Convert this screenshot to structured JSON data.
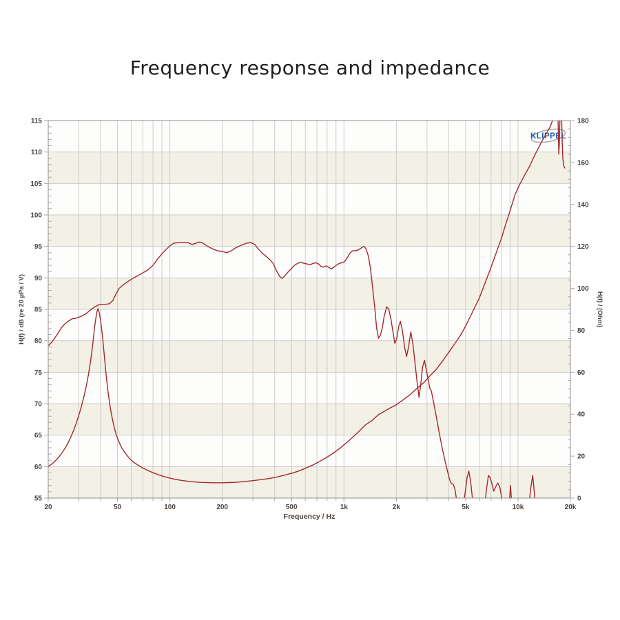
{
  "title": "Frequency response and impedance",
  "logo": {
    "text": "KLIPPEL",
    "color": "#1d5fae",
    "arc_color": "#a7abb2"
  },
  "colors": {
    "curve": "#a5282b",
    "grid": "#cccccc",
    "minor_tick": "#aaaaaa",
    "frame": "#8f8f8f",
    "band_cream": "#f3f0e6",
    "band_white": "#fdfdfc",
    "axis_text": "#4a423d",
    "title_text": "#1e1e1e"
  },
  "chart_data": {
    "type": "line",
    "title": "Frequency response and impedance",
    "xlabel": "Frequency / Hz",
    "x_scale": "log",
    "x_range": [
      20,
      20000
    ],
    "left_axis": {
      "label": "H(f) / dB (re 20 µPa / V)",
      "min": 55,
      "max": 115,
      "major_step": 5,
      "minor_step": 1
    },
    "right_axis": {
      "label": "H(f) / (Ohm)",
      "min": 0,
      "max": 180,
      "major_step": 20,
      "minor_step": 4
    },
    "x_ticks": [
      [
        20,
        "20"
      ],
      [
        50,
        "50"
      ],
      [
        100,
        "100"
      ],
      [
        200,
        "200"
      ],
      [
        500,
        "500"
      ],
      [
        1000,
        "1k"
      ],
      [
        2000,
        "2k"
      ],
      [
        5000,
        "5k"
      ],
      [
        10000,
        "10k"
      ],
      [
        20000,
        "20k"
      ]
    ],
    "grid": true,
    "series": [
      {
        "name": "frequency-response",
        "axis": "left",
        "unit": "dB",
        "points": [
          [
            20,
            79.2
          ],
          [
            21,
            79.8
          ],
          [
            22,
            80.6
          ],
          [
            23,
            81.4
          ],
          [
            24,
            82.2
          ],
          [
            25,
            82.7
          ],
          [
            26,
            83.1
          ],
          [
            27.5,
            83.5
          ],
          [
            29,
            83.6
          ],
          [
            31,
            83.9
          ],
          [
            33,
            84.3
          ],
          [
            35,
            84.9
          ],
          [
            37,
            85.4
          ],
          [
            39,
            85.7
          ],
          [
            41,
            85.8
          ],
          [
            43,
            85.8
          ],
          [
            45,
            85.9
          ],
          [
            47,
            86.4
          ],
          [
            49,
            87.4
          ],
          [
            51,
            88.3
          ],
          [
            54,
            88.9
          ],
          [
            58,
            89.5
          ],
          [
            62,
            90.0
          ],
          [
            66,
            90.4
          ],
          [
            70,
            90.8
          ],
          [
            75,
            91.3
          ],
          [
            80,
            92.0
          ],
          [
            85,
            93.0
          ],
          [
            90,
            93.8
          ],
          [
            95,
            94.5
          ],
          [
            100,
            95.1
          ],
          [
            105,
            95.5
          ],
          [
            112,
            95.6
          ],
          [
            120,
            95.6
          ],
          [
            127,
            95.6
          ],
          [
            134,
            95.3
          ],
          [
            141,
            95.5
          ],
          [
            148,
            95.7
          ],
          [
            155,
            95.5
          ],
          [
            165,
            95.0
          ],
          [
            176,
            94.6
          ],
          [
            188,
            94.3
          ],
          [
            200,
            94.2
          ],
          [
            212,
            94.0
          ],
          [
            225,
            94.3
          ],
          [
            240,
            94.8
          ],
          [
            258,
            95.2
          ],
          [
            275,
            95.5
          ],
          [
            292,
            95.6
          ],
          [
            308,
            95.3
          ],
          [
            322,
            94.6
          ],
          [
            340,
            93.9
          ],
          [
            358,
            93.4
          ],
          [
            375,
            92.9
          ],
          [
            392,
            92.3
          ],
          [
            410,
            91.1
          ],
          [
            428,
            90.2
          ],
          [
            443,
            89.9
          ],
          [
            460,
            90.4
          ],
          [
            480,
            91.0
          ],
          [
            500,
            91.5
          ],
          [
            520,
            92.0
          ],
          [
            542,
            92.3
          ],
          [
            565,
            92.5
          ],
          [
            590,
            92.3
          ],
          [
            615,
            92.2
          ],
          [
            640,
            92.1
          ],
          [
            665,
            92.3
          ],
          [
            690,
            92.4
          ],
          [
            715,
            92.2
          ],
          [
            740,
            91.8
          ],
          [
            765,
            91.7
          ],
          [
            790,
            91.9
          ],
          [
            815,
            91.7
          ],
          [
            845,
            91.4
          ],
          [
            875,
            91.7
          ],
          [
            905,
            92.0
          ],
          [
            940,
            92.3
          ],
          [
            975,
            92.4
          ],
          [
            1010,
            92.6
          ],
          [
            1045,
            93.2
          ],
          [
            1080,
            93.9
          ],
          [
            1120,
            94.3
          ],
          [
            1160,
            94.3
          ],
          [
            1200,
            94.4
          ],
          [
            1250,
            94.7
          ],
          [
            1300,
            95.0
          ],
          [
            1340,
            94.6
          ],
          [
            1380,
            93.5
          ],
          [
            1420,
            91.5
          ],
          [
            1460,
            88.5
          ],
          [
            1500,
            85.5
          ],
          [
            1540,
            82.0
          ],
          [
            1580,
            80.4
          ],
          [
            1620,
            80.9
          ],
          [
            1660,
            82.0
          ],
          [
            1700,
            83.8
          ],
          [
            1760,
            85.4
          ],
          [
            1810,
            85.0
          ],
          [
            1860,
            83.5
          ],
          [
            1910,
            81.5
          ],
          [
            1960,
            79.6
          ],
          [
            2010,
            80.3
          ],
          [
            2060,
            82.2
          ],
          [
            2110,
            83.1
          ],
          [
            2170,
            81.5
          ],
          [
            2230,
            79.0
          ],
          [
            2290,
            77.5
          ],
          [
            2350,
            79.0
          ],
          [
            2420,
            81.4
          ],
          [
            2490,
            79.5
          ],
          [
            2560,
            76.5
          ],
          [
            2630,
            73.5
          ],
          [
            2700,
            71.0
          ],
          [
            2760,
            73.0
          ],
          [
            2830,
            75.8
          ],
          [
            2900,
            76.9
          ],
          [
            2970,
            75.5
          ],
          [
            3040,
            74.0
          ],
          [
            3110,
            72.5
          ],
          [
            3180,
            72.0
          ],
          [
            3260,
            70.5
          ],
          [
            3350,
            68.8
          ],
          [
            3450,
            66.8
          ],
          [
            3560,
            64.8
          ],
          [
            3680,
            62.8
          ],
          [
            3800,
            61.0
          ],
          [
            3930,
            59.3
          ],
          [
            4060,
            57.8
          ],
          [
            4150,
            57.3
          ],
          [
            4250,
            57.2
          ],
          [
            4350,
            56.3
          ],
          [
            4450,
            54.5
          ],
          [
            4550,
            53.0
          ],
          [
            4700,
            53.0
          ],
          [
            4820,
            53.5
          ],
          [
            4950,
            55.5
          ],
          [
            5100,
            58.3
          ],
          [
            5220,
            59.3
          ],
          [
            5350,
            57.5
          ],
          [
            5480,
            54.8
          ],
          [
            5560,
            53.0
          ],
          [
            6250,
            53.0
          ],
          [
            6450,
            54.0
          ],
          [
            6600,
            56.5
          ],
          [
            6760,
            58.6
          ],
          [
            6900,
            58.3
          ],
          [
            7050,
            57.5
          ],
          [
            7250,
            56.1
          ],
          [
            7450,
            56.8
          ],
          [
            7650,
            57.4
          ],
          [
            7850,
            56.8
          ],
          [
            8050,
            55.2
          ],
          [
            8250,
            53.5
          ],
          [
            8350,
            53.0
          ],
          [
            8800,
            53.0
          ],
          [
            8950,
            55.0
          ],
          [
            9050,
            57.0
          ],
          [
            9150,
            55.2
          ],
          [
            9280,
            53.0
          ],
          [
            11300,
            53.0
          ],
          [
            11600,
            54.5
          ],
          [
            11900,
            57.0
          ],
          [
            12150,
            58.6
          ],
          [
            12400,
            56.0
          ],
          [
            12650,
            53.5
          ],
          [
            12800,
            53.0
          ]
        ]
      },
      {
        "name": "impedance",
        "axis": "right",
        "unit": "Ohm",
        "points": [
          [
            20,
            15.1
          ],
          [
            21,
            16.3
          ],
          [
            22,
            17.8
          ],
          [
            23,
            19.5
          ],
          [
            24,
            21.5
          ],
          [
            25,
            23.8
          ],
          [
            26,
            26.3
          ],
          [
            27,
            29.2
          ],
          [
            28,
            32.3
          ],
          [
            29,
            35.8
          ],
          [
            30,
            39.6
          ],
          [
            31,
            43.6
          ],
          [
            32,
            48.0
          ],
          [
            33,
            53.0
          ],
          [
            34,
            58.5
          ],
          [
            35,
            65.0
          ],
          [
            36,
            73.0
          ],
          [
            37,
            82.0
          ],
          [
            38,
            88.5
          ],
          [
            38.6,
            90.3
          ],
          [
            39.3,
            88.5
          ],
          [
            40,
            84.5
          ],
          [
            41,
            77.0
          ],
          [
            42,
            68.0
          ],
          [
            43,
            59.0
          ],
          [
            44,
            51.5
          ],
          [
            45,
            45.5
          ],
          [
            46,
            40.5
          ],
          [
            47.5,
            35.0
          ],
          [
            49,
            30.5
          ],
          [
            51,
            26.8
          ],
          [
            53,
            23.8
          ],
          [
            56,
            20.9
          ],
          [
            59,
            18.6
          ],
          [
            62,
            17.0
          ],
          [
            66,
            15.6
          ],
          [
            70,
            14.3
          ],
          [
            75,
            13.1
          ],
          [
            80,
            12.1
          ],
          [
            86,
            11.1
          ],
          [
            92,
            10.3
          ],
          [
            100,
            9.5
          ],
          [
            108,
            8.9
          ],
          [
            117,
            8.4
          ],
          [
            127,
            8.0
          ],
          [
            138,
            7.7
          ],
          [
            150,
            7.5
          ],
          [
            165,
            7.35
          ],
          [
            180,
            7.3
          ],
          [
            200,
            7.3
          ],
          [
            220,
            7.4
          ],
          [
            245,
            7.6
          ],
          [
            270,
            7.9
          ],
          [
            300,
            8.3
          ],
          [
            335,
            8.8
          ],
          [
            370,
            9.3
          ],
          [
            410,
            10.0
          ],
          [
            450,
            10.8
          ],
          [
            500,
            11.8
          ],
          [
            550,
            12.9
          ],
          [
            600,
            14.2
          ],
          [
            660,
            15.7
          ],
          [
            720,
            17.3
          ],
          [
            790,
            19.2
          ],
          [
            860,
            21.2
          ],
          [
            940,
            23.5
          ],
          [
            1020,
            25.9
          ],
          [
            1120,
            28.9
          ],
          [
            1220,
            31.8
          ],
          [
            1330,
            34.9
          ],
          [
            1450,
            37.0
          ],
          [
            1580,
            39.8
          ],
          [
            1630,
            40.4
          ],
          [
            1800,
            42.5
          ],
          [
            2000,
            44.5
          ],
          [
            2200,
            47.0
          ],
          [
            2400,
            49.3
          ],
          [
            2600,
            52.0
          ],
          [
            2850,
            54.8
          ],
          [
            3100,
            58.0
          ],
          [
            3360,
            61.0
          ],
          [
            3650,
            64.8
          ],
          [
            3950,
            68.8
          ],
          [
            4300,
            73.2
          ],
          [
            4660,
            77.5
          ],
          [
            5000,
            82.0
          ],
          [
            5500,
            89.0
          ],
          [
            6000,
            95.5
          ],
          [
            6500,
            103.0
          ],
          [
            7000,
            110.0
          ],
          [
            7500,
            117.0
          ],
          [
            8000,
            123.5
          ],
          [
            8500,
            130.5
          ],
          [
            9000,
            137.0
          ],
          [
            9650,
            145.0
          ],
          [
            10300,
            150.0
          ],
          [
            11000,
            154.5
          ],
          [
            11700,
            158.5
          ],
          [
            12400,
            163.0
          ],
          [
            13200,
            167.5
          ],
          [
            14000,
            171.5
          ],
          [
            14700,
            174.5
          ],
          [
            15300,
            177.0
          ],
          [
            15800,
            180.0
          ],
          [
            16000,
            182.0
          ],
          [
            16300,
            186.0
          ],
          [
            16700,
            190.0
          ],
          [
            16900,
            188.0
          ],
          [
            17050,
            174.0
          ],
          [
            17150,
            164.0
          ],
          [
            17250,
            168.0
          ],
          [
            17400,
            180.0
          ],
          [
            17500,
            188.0
          ],
          [
            17650,
            190.0
          ],
          [
            17800,
            182.0
          ],
          [
            17950,
            170.0
          ],
          [
            18100,
            162.0
          ],
          [
            18300,
            158.5
          ],
          [
            18600,
            157.2
          ]
        ]
      }
    ]
  },
  "layout_note": "bands alternate white/cream every 5 dB starting white at 115-110"
}
